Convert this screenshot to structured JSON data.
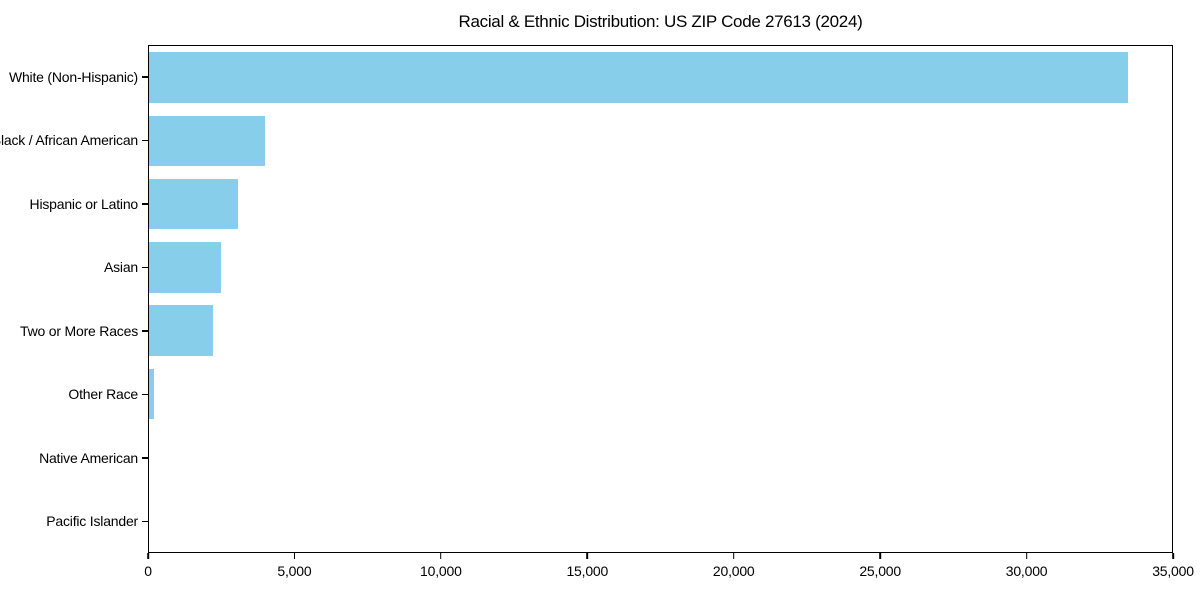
{
  "colors": {
    "bar": "#87CEEB",
    "axis": "#000000",
    "background": "#FFFFFF",
    "text": "#000000"
  },
  "chart_data": {
    "type": "bar",
    "orientation": "horizontal",
    "title": "Racial & Ethnic Distribution: US ZIP Code 27613 (2024)",
    "xlabel": "",
    "ylabel": "",
    "categories": [
      "White (Non-Hispanic)",
      "Black / African American",
      "Hispanic or Latino",
      "Asian",
      "Two or More Races",
      "Other Race",
      "Native American",
      "Pacific Islander"
    ],
    "values": [
      33500,
      3960,
      3040,
      2450,
      2180,
      170,
      0,
      0
    ],
    "xlim": [
      0,
      35000
    ],
    "x_ticks": [
      0,
      5000,
      10000,
      15000,
      20000,
      25000,
      30000,
      35000
    ],
    "x_tick_labels": [
      "0",
      "5,000",
      "10,000",
      "15,000",
      "20,000",
      "25,000",
      "30,000",
      "35,000"
    ],
    "bar_color": "#87CEEB",
    "grid": false,
    "legend_position": "none"
  }
}
